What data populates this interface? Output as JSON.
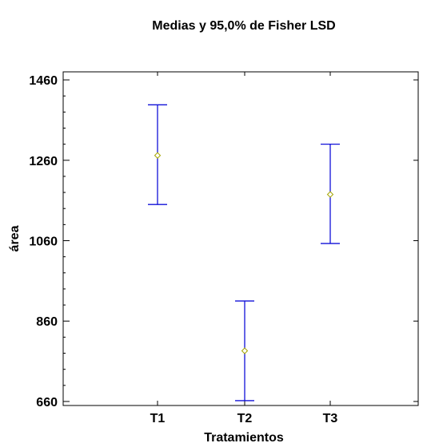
{
  "chart_data": {
    "type": "interval",
    "title": "Medias y 95,0% de Fisher LSD",
    "xlabel": "Tratamientos",
    "ylabel": "área",
    "categories": [
      "T1",
      "T2",
      "T3"
    ],
    "means": [
      1272,
      786,
      1175
    ],
    "lower": [
      1150,
      662,
      1053
    ],
    "upper": [
      1398,
      910,
      1300
    ],
    "ylim": [
      650,
      1480
    ],
    "yticks": [
      660,
      860,
      1060,
      1260,
      1460
    ],
    "colors": {
      "interval": "#1010d8",
      "mean_marker": "#a4a400",
      "axis": "#000000"
    },
    "grid": false
  }
}
